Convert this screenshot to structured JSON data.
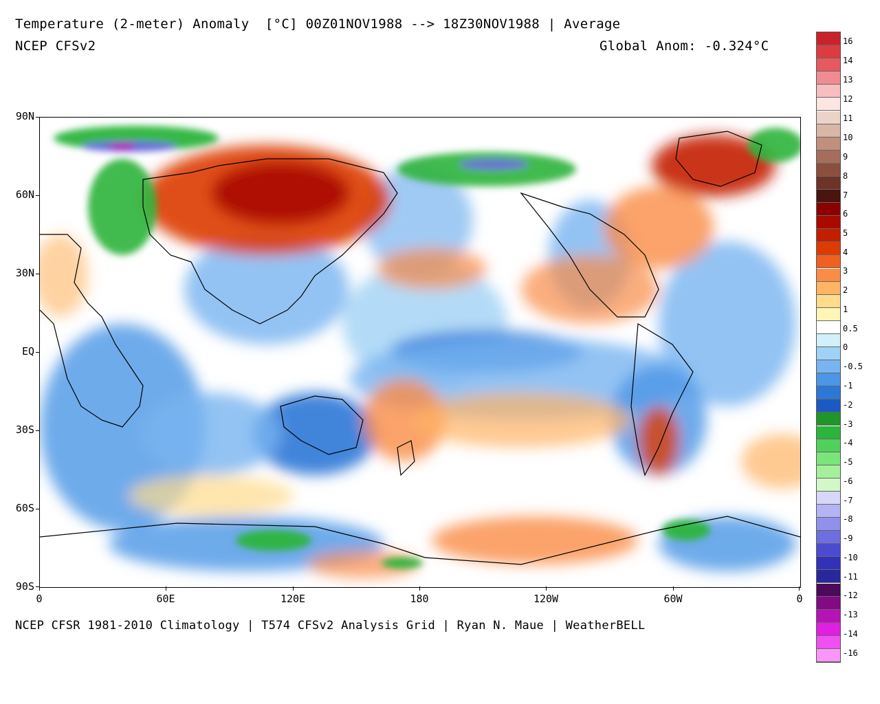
{
  "header": {
    "title": "Temperature (2-meter) Anomaly  [°C] 00Z01NOV1988 --> 18Z30NOV1988 | Average",
    "model": "NCEP CFSv2",
    "global_anom": "Global Anom: -0.324°C"
  },
  "footer": "NCEP CFSR 1981-2010 Climatology | T574 CFSv2 Analysis Grid | Ryan N. Maue | WeatherBELL",
  "axes": {
    "lat_labels": [
      "90N",
      "60N",
      "30N",
      "EQ",
      "30S",
      "60S",
      "90S"
    ],
    "lon_labels": [
      "0",
      "60E",
      "120E",
      "180",
      "120W",
      "60W",
      "0"
    ]
  },
  "colorbar": {
    "labels": [
      "16",
      "14",
      "13",
      "12",
      "11",
      "10",
      "9",
      "8",
      "7",
      "6",
      "5",
      "4",
      "3",
      "2",
      "1",
      "0.5",
      "0",
      "-0.5",
      "-1",
      "-2",
      "-3",
      "-4",
      "-5",
      "-6",
      "-7",
      "-8",
      "-9",
      "-10",
      "-11",
      "-12",
      "-13",
      "-14",
      "-16"
    ],
    "colors": [
      "#c8232a",
      "#dc3c41",
      "#e65a5f",
      "#f08c91",
      "#f7bec0",
      "#fde6e2",
      "#ecd3c8",
      "#d9b6a6",
      "#c0907d",
      "#a66e5a",
      "#8b4f3e",
      "#6e3327",
      "#4a1410",
      "#8c0000",
      "#a80a00",
      "#c41e00",
      "#dc3c00",
      "#f06020",
      "#fa8c46",
      "#ffb464",
      "#ffdc8c",
      "#fff5b4",
      "#ffffff",
      "#d2f0fa",
      "#a0d2f5",
      "#78b4f0",
      "#4b96e6",
      "#2d78d7",
      "#1c5ac3",
      "#1e9628",
      "#2db43c",
      "#50d25a",
      "#78e678",
      "#a5f09b",
      "#d2f8c8",
      "#d7d7fa",
      "#b4b4f5",
      "#9191eb",
      "#6e6ee1",
      "#4b4bd2",
      "#3232b9",
      "#28289b",
      "#4b0a5a",
      "#820a82",
      "#b414b4",
      "#e11ee1",
      "#f050f0",
      "#fa96fa"
    ]
  },
  "map_colors": {
    "ocean_neutral": "#ffffff",
    "cool": "#78b4f0",
    "cooler": "#2d78d7",
    "warm": "#fa8c46",
    "hot": "#c41e00",
    "cold_green": "#2db43c",
    "cold_purple": "#6e6ee1"
  }
}
